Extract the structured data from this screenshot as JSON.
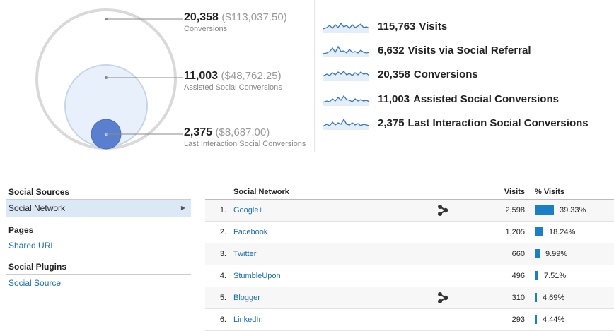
{
  "circles": [
    {
      "value": "20,358",
      "money": "($113,037.50)",
      "label": "Conversions"
    },
    {
      "value": "11,003",
      "money": "($48,762.25)",
      "label": "Assisted Social Conversions"
    },
    {
      "value": "2,375",
      "money": "($8,687.00)",
      "label": "Last Interaction Social Conversions"
    }
  ],
  "summary": [
    {
      "value": "115,763",
      "label": "Visits"
    },
    {
      "value": "6,632",
      "label": "Visits via Social Referral"
    },
    {
      "value": "20,358",
      "label": "Conversions"
    },
    {
      "value": "11,003",
      "label": "Assisted Social Conversions"
    },
    {
      "value": "2,375",
      "label": "Last Interaction Social Conversions"
    }
  ],
  "nav": {
    "sources_heading": "Social Sources",
    "social_network": "Social Network",
    "pages_heading": "Pages",
    "shared_url": "Shared URL",
    "plugins_heading": "Social Plugins",
    "social_source": "Social Source"
  },
  "table": {
    "headers": {
      "network": "Social Network",
      "visits": "Visits",
      "pct": "% Visits"
    },
    "rows": [
      {
        "idx": "1.",
        "name": "Google+",
        "visits": "2,598",
        "pct": "39.33%",
        "share": 0.3933,
        "activity_icon": true
      },
      {
        "idx": "2.",
        "name": "Facebook",
        "visits": "1,205",
        "pct": "18.24%",
        "share": 0.1824,
        "activity_icon": false
      },
      {
        "idx": "3.",
        "name": "Twitter",
        "visits": "660",
        "pct": "9.99%",
        "share": 0.0999,
        "activity_icon": false
      },
      {
        "idx": "4.",
        "name": "StumbleUpon",
        "visits": "496",
        "pct": "7.51%",
        "share": 0.0751,
        "activity_icon": false
      },
      {
        "idx": "5.",
        "name": "Blogger",
        "visits": "310",
        "pct": "4.69%",
        "share": 0.0469,
        "activity_icon": true
      },
      {
        "idx": "6.",
        "name": "LinkedIn",
        "visits": "293",
        "pct": "4.44%",
        "share": 0.0444,
        "activity_icon": false
      }
    ]
  },
  "colors": {
    "link": "#1a6eb4",
    "bar": "#1a7fc5",
    "circle_inner": "#5b7fcf",
    "spark": "#3a78b8"
  }
}
